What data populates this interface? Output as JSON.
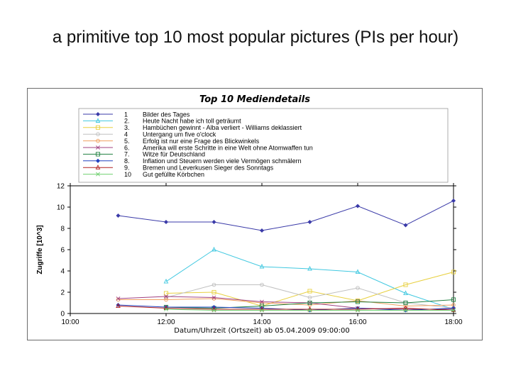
{
  "page": {
    "title": "a primitive top 10 most popular pictures (PIs per hour)"
  },
  "chart_data": {
    "type": "line",
    "title": "Top 10 Mediendetails",
    "xlabel": "Datum/Uhrzeit (Ortszeit) ab 05.04.2009 09:00:00",
    "ylabel": "Zugriffe [10^3]",
    "xlim": [
      10,
      18
    ],
    "ylim": [
      0,
      12
    ],
    "x_ticks": [
      10,
      12,
      14,
      16,
      18
    ],
    "x_tick_labels": [
      "10:00",
      "12:00",
      "14:00",
      "16:00",
      "18:00"
    ],
    "y_ticks": [
      0,
      2,
      4,
      6,
      8,
      10,
      12
    ],
    "y_tick_labels": [
      "0",
      "2",
      "4",
      "6",
      "8",
      "10",
      "12"
    ],
    "grid": false,
    "legend_position": "top",
    "x": [
      11,
      12,
      13,
      14,
      15,
      16,
      17,
      18
    ],
    "series": [
      {
        "rank": "1",
        "name": "Bilder des Tages",
        "color": "#3a3aa8",
        "marker": "diamond",
        "values": [
          9.2,
          8.6,
          8.6,
          7.8,
          8.6,
          10.1,
          8.3,
          10.6
        ]
      },
      {
        "rank": "2.",
        "name": "Heute Nacht habe ich toll geträumt",
        "color": "#40c8e0",
        "marker": "triangle",
        "values": [
          null,
          3.0,
          6.0,
          4.4,
          4.2,
          3.9,
          1.9,
          0.4
        ]
      },
      {
        "rank": "3.",
        "name": "Hambüchen gewinnt - Alba verliert - Williams deklassiert",
        "color": "#e8d040",
        "marker": "square",
        "values": [
          null,
          1.9,
          2.0,
          0.7,
          2.1,
          1.2,
          2.7,
          3.9
        ]
      },
      {
        "rank": "4",
        "name": "Untergang um five o'clock",
        "color": "#c0c0c0",
        "marker": "circle",
        "values": [
          null,
          1.5,
          2.7,
          2.7,
          1.5,
          2.4,
          1.0,
          0.5
        ]
      },
      {
        "rank": "5.",
        "name": "Erfolg ist nur eine Frage des Blickwinkels",
        "color": "#f0a060",
        "marker": "circle",
        "values": [
          1.3,
          1.3,
          1.4,
          1.0,
          0.8,
          1.2,
          0.7,
          0.8
        ]
      },
      {
        "rank": "6.",
        "name": "Amerika will erste Schritte in eine Welt ohne Atomwaffen tun",
        "color": "#a04080",
        "marker": "x",
        "values": [
          1.4,
          1.6,
          1.5,
          1.1,
          1.0,
          0.5,
          0.4,
          0.4
        ]
      },
      {
        "rank": "7.",
        "name": "Witze für Deutschland",
        "color": "#208040",
        "marker": "square",
        "values": [
          null,
          0.6,
          0.5,
          0.7,
          1.0,
          1.1,
          1.0,
          1.3
        ]
      },
      {
        "rank": "8.",
        "name": "Inflation und Steuern werden viele Vermögen schmälern",
        "color": "#2040c0",
        "marker": "diamond",
        "values": [
          0.8,
          0.6,
          0.6,
          0.5,
          0.3,
          0.5,
          0.3,
          0.5
        ]
      },
      {
        "rank": "9.",
        "name": "Bremen und Leverkusen Sieger des Sonntags",
        "color": "#b02020",
        "marker": "triangle",
        "values": [
          0.7,
          0.5,
          0.4,
          0.4,
          0.4,
          0.4,
          0.5,
          0.3
        ]
      },
      {
        "rank": "10",
        "name": "Gut gefüllte Körbchen",
        "color": "#70d070",
        "marker": "x",
        "values": [
          null,
          0.4,
          0.3,
          0.3,
          0.3,
          0.3,
          0.3,
          0.3
        ]
      }
    ]
  }
}
